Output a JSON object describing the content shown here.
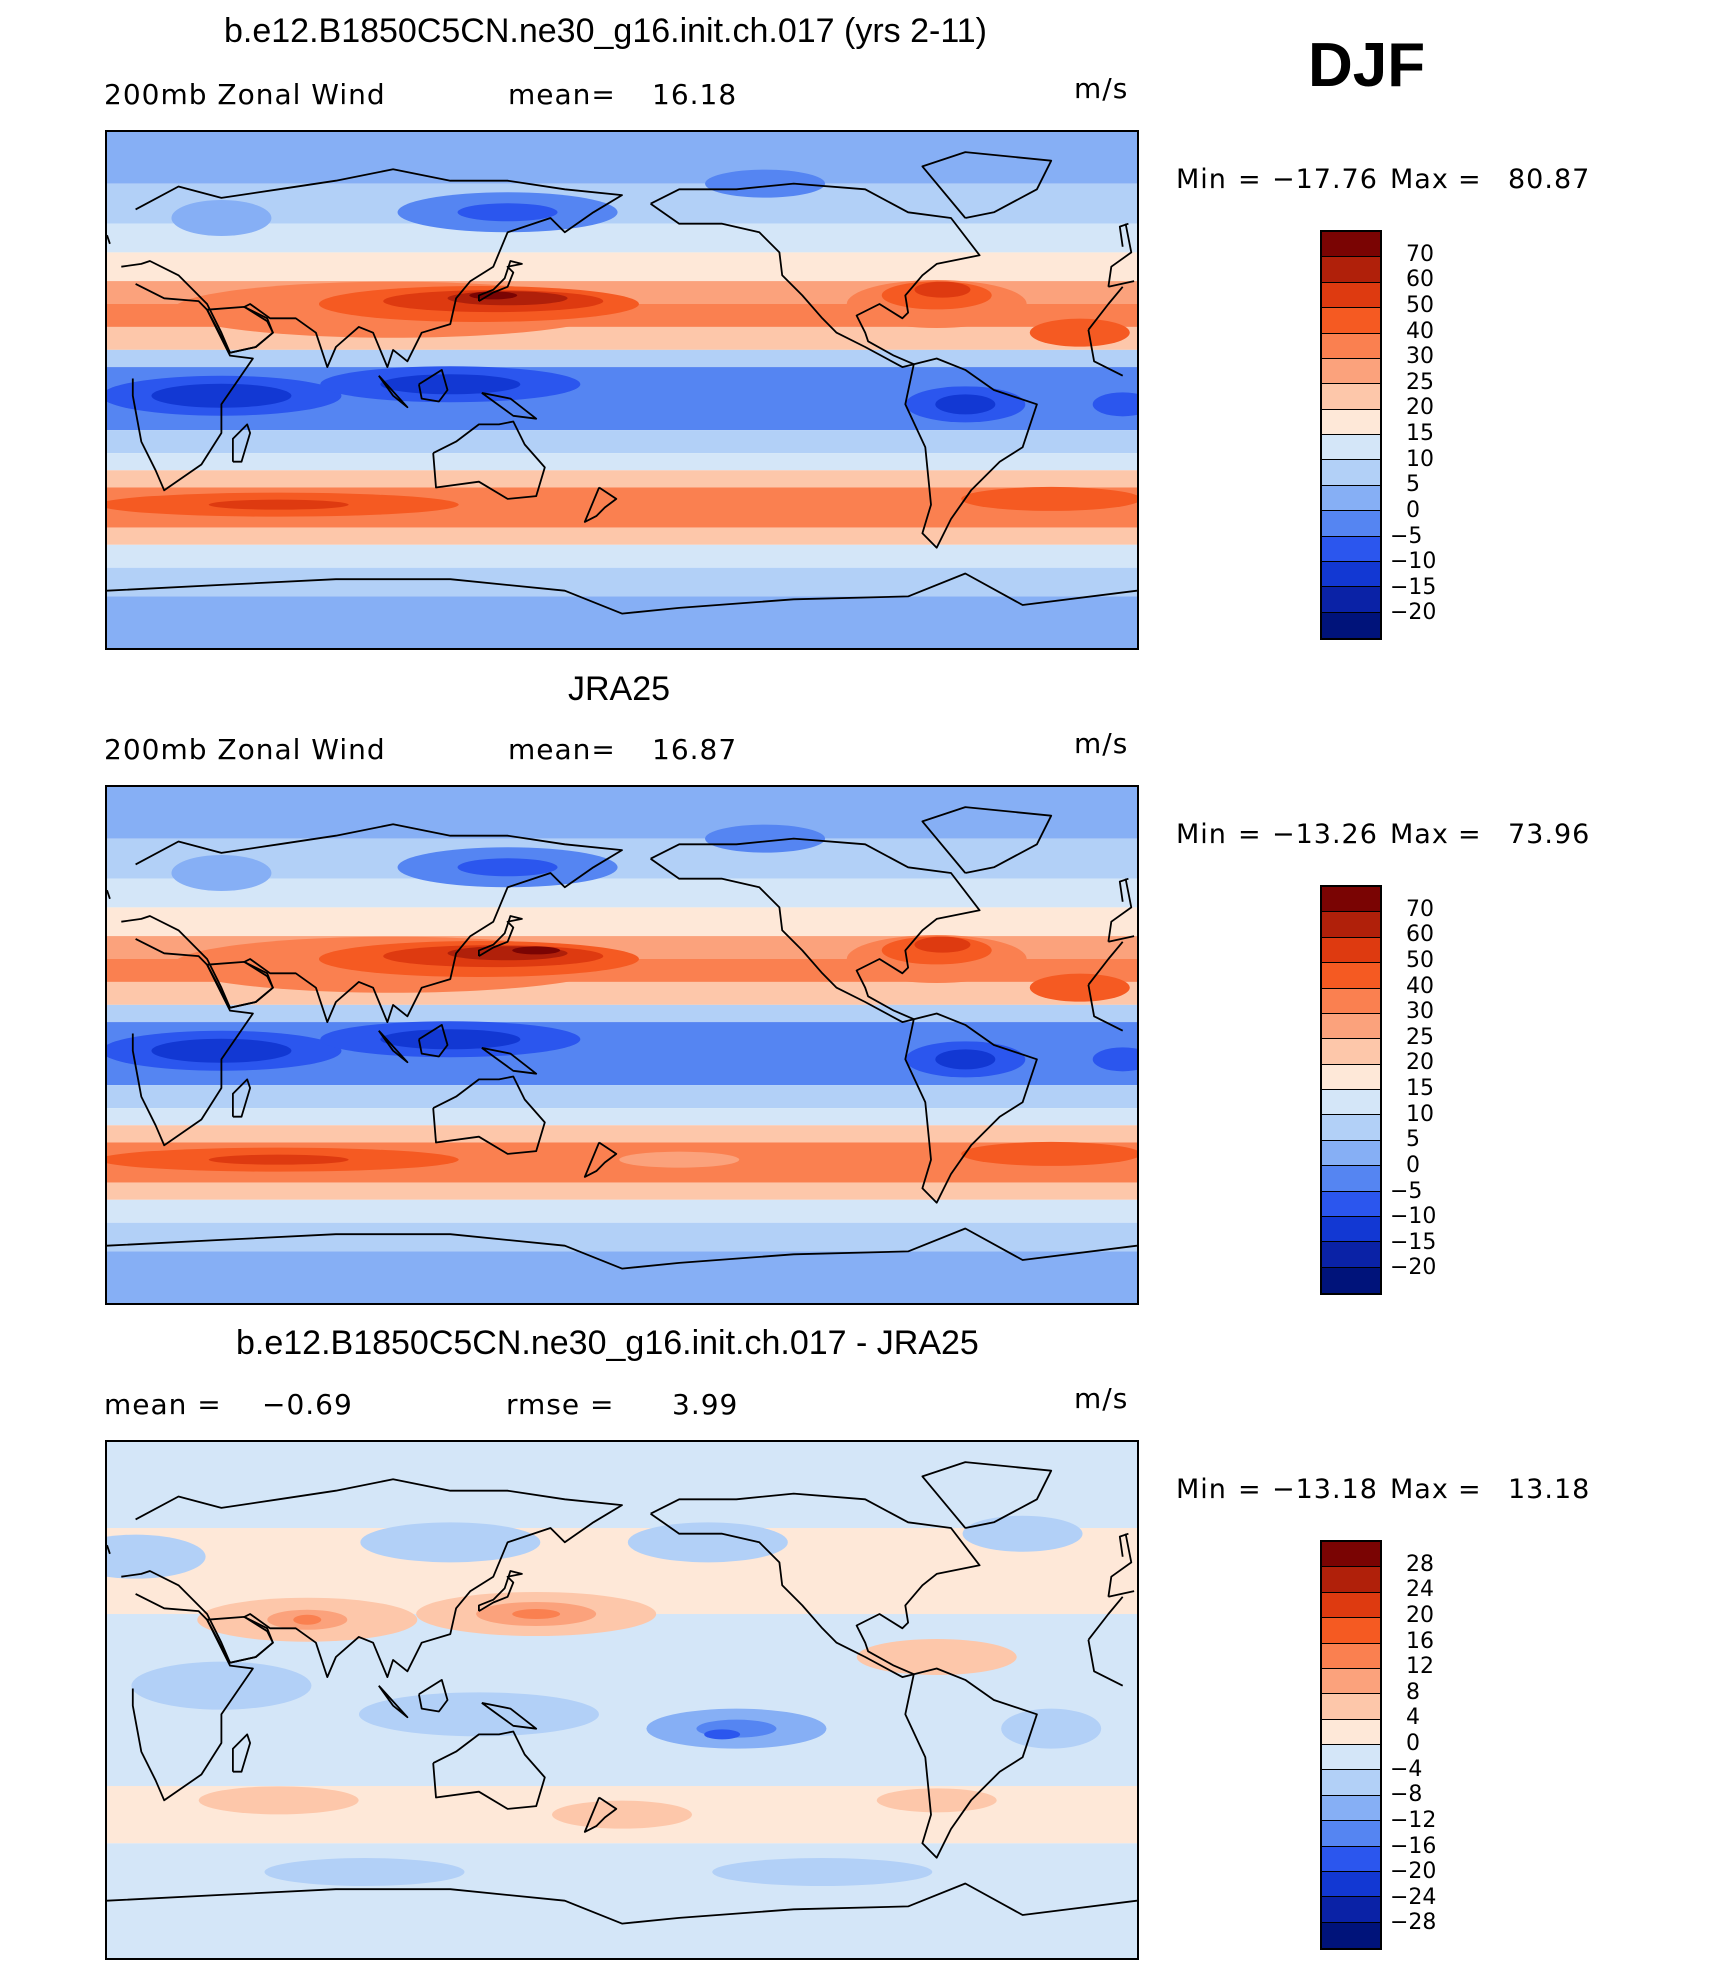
{
  "season": "DJF",
  "units": "m/s",
  "panels": [
    {
      "title": "b.e12.B1850C5CN.ne30_g16.init.ch.017 (yrs 2-11)",
      "left_label": "200mb Zonal Wind",
      "center_label": "mean=",
      "center_value": "16.18",
      "right_label": "m/s",
      "min_label": "Min",
      "min_value": "−17.76",
      "max_label": "Max",
      "max_value": "80.87",
      "map_type": "model"
    },
    {
      "title": "JRA25",
      "left_label": "200mb Zonal Wind",
      "center_label": "mean=",
      "center_value": "16.87",
      "right_label": "m/s",
      "min_label": "Min",
      "min_value": "−13.26",
      "max_label": "Max",
      "max_value": "73.96",
      "map_type": "obs"
    },
    {
      "title": "b.e12.B1850C5CN.ne30_g16.init.ch.017 - JRA25",
      "left_label": "mean =",
      "left_value": "−0.69",
      "center_label": "rmse =",
      "center_value": "3.99",
      "right_label": "m/s",
      "min_label": "Min",
      "min_value": "−13.18",
      "max_label": "Max",
      "max_value": "13.18",
      "map_type": "diff"
    }
  ],
  "colorbars": {
    "field": {
      "levels": [
        "70",
        "60",
        "50",
        "40",
        "30",
        "25",
        "20",
        "15",
        "10",
        "5",
        "0",
        "−5",
        "−10",
        "−15",
        "−20"
      ],
      "colors": [
        "#7a0403",
        "#b0200a",
        "#de3a10",
        "#f55a22",
        "#fa8050",
        "#fba27c",
        "#fdc7aa",
        "#fee8d8",
        "#d4e6f8",
        "#b2d0f7",
        "#86aff5",
        "#5585f2",
        "#2b56ee",
        "#1238d3",
        "#0a22a6",
        "#00137a"
      ]
    },
    "diff": {
      "levels": [
        "28",
        "24",
        "20",
        "16",
        "12",
        "8",
        "4",
        "0",
        "−4",
        "−8",
        "−12",
        "−16",
        "−20",
        "−24",
        "−28"
      ],
      "colors": [
        "#7a0403",
        "#b0200a",
        "#de3a10",
        "#f55a22",
        "#fa8050",
        "#fba27c",
        "#fdc7aa",
        "#fee8d8",
        "#d4e6f8",
        "#b2d0f7",
        "#86aff5",
        "#5585f2",
        "#2b56ee",
        "#1238d3",
        "#0a22a6",
        "#00137a"
      ]
    }
  }
}
